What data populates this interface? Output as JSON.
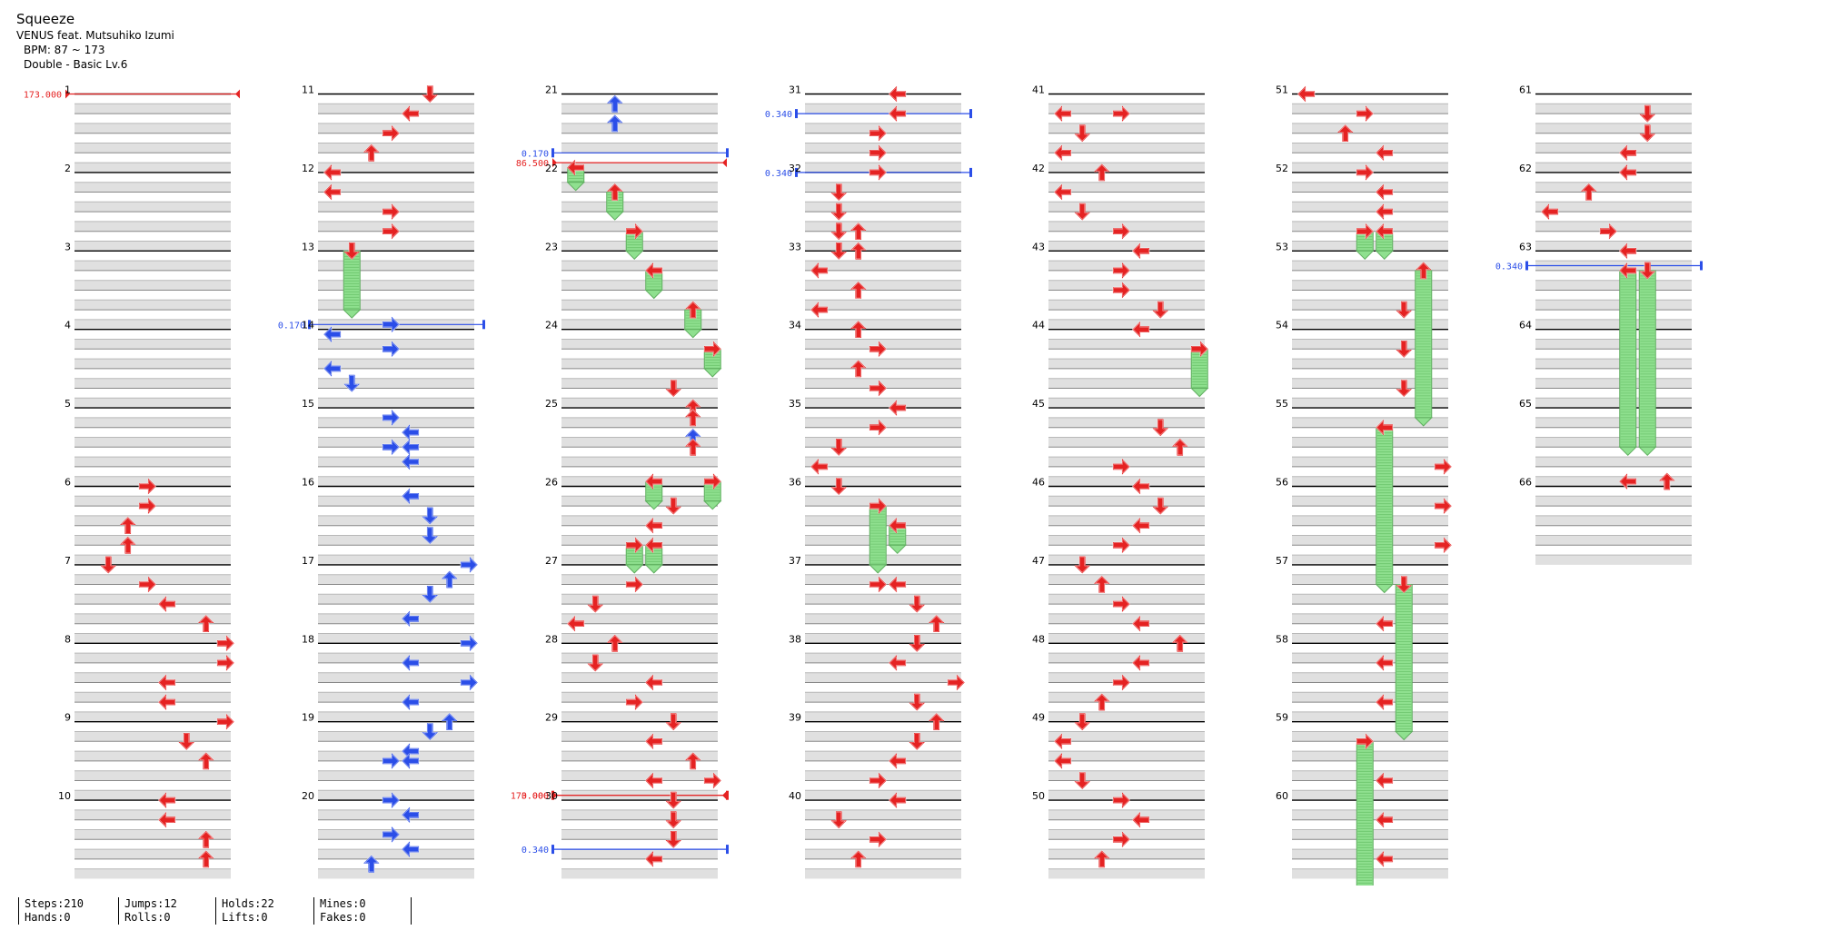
{
  "song": {
    "title": "Squeeze",
    "artist": "VENUS feat. Mutsuhiko Izumi",
    "bpm_label": "BPM: 87 ~ 173",
    "difficulty": "Double - Basic Lv.6"
  },
  "measure_numbers": [
    "1",
    "2",
    "3",
    "4",
    "5",
    "6",
    "7",
    "8",
    "9",
    "10",
    "11",
    "12",
    "13",
    "14",
    "15",
    "16",
    "17",
    "18",
    "19",
    "20",
    "21",
    "22",
    "23",
    "24",
    "25",
    "26",
    "27",
    "28",
    "29",
    "30",
    "31",
    "32",
    "33",
    "34",
    "35",
    "36",
    "37",
    "38",
    "39",
    "40",
    "41",
    "42",
    "43",
    "44",
    "45",
    "46",
    "47",
    "48",
    "49",
    "50",
    "51",
    "52",
    "53",
    "54",
    "55",
    "56",
    "57",
    "58",
    "59",
    "60",
    "61",
    "62",
    "63",
    "64",
    "65",
    "66"
  ],
  "tempo_markers": [
    {
      "measure": 1,
      "beat": 0,
      "label": "173.000",
      "type": "bpm",
      "color": "#e52222"
    },
    {
      "measure": 22,
      "beat": -0.5,
      "label": "86.500",
      "type": "bpm",
      "color": "#e52222"
    },
    {
      "measure": 30,
      "beat": -0.25,
      "label": "173.000",
      "type": "bpm",
      "color": "#e52222"
    },
    {
      "measure": 14,
      "beat": -0.25,
      "label": "0.170",
      "type": "stop",
      "color": "#2b4ee8"
    },
    {
      "measure": 22,
      "beat": -1,
      "label": "0.170",
      "type": "stop",
      "color": "#2b4ee8"
    },
    {
      "measure": 30,
      "beat": -0.25,
      "label": "0.000",
      "type": "stop",
      "color": "#e52222"
    },
    {
      "measure": 30,
      "beat": 2.5,
      "label": "0.340",
      "type": "stop",
      "color": "#2b4ee8"
    },
    {
      "measure": 31,
      "beat": 1,
      "label": "0.340",
      "type": "stop",
      "color": "#2b4ee8"
    },
    {
      "measure": 32,
      "beat": 0,
      "label": "0.340",
      "type": "stop",
      "color": "#2b4ee8"
    },
    {
      "measure": 63,
      "beat": 0.75,
      "label": "0.340",
      "type": "stop",
      "color": "#2b4ee8"
    }
  ],
  "notes": [
    {
      "m": 6,
      "b": 0,
      "lanes": [
        3
      ]
    },
    {
      "m": 6,
      "b": 1,
      "lanes": [
        3
      ]
    },
    {
      "m": 6,
      "b": 2,
      "lanes": [
        2
      ]
    },
    {
      "m": 6,
      "b": 3,
      "lanes": [
        2
      ]
    },
    {
      "m": 7,
      "b": 0,
      "lanes": [
        1
      ]
    },
    {
      "m": 7,
      "b": 1,
      "lanes": [
        3
      ]
    },
    {
      "m": 7,
      "b": 2,
      "lanes": [
        4
      ]
    },
    {
      "m": 7,
      "b": 3,
      "lanes": [
        6
      ]
    },
    {
      "m": 8,
      "b": 0,
      "lanes": [
        7
      ]
    },
    {
      "m": 8,
      "b": 1,
      "lanes": [
        7
      ]
    },
    {
      "m": 8,
      "b": 2,
      "lanes": [
        4
      ]
    },
    {
      "m": 8,
      "b": 3,
      "lanes": [
        4
      ]
    },
    {
      "m": 9,
      "b": 0,
      "lanes": [
        7
      ]
    },
    {
      "m": 9,
      "b": 1,
      "lanes": [
        5
      ]
    },
    {
      "m": 9,
      "b": 2,
      "lanes": [
        6
      ]
    },
    {
      "m": 10,
      "b": 0,
      "lanes": [
        4
      ]
    },
    {
      "m": 10,
      "b": 1,
      "lanes": [
        4
      ]
    },
    {
      "m": 10,
      "b": 2,
      "lanes": [
        6
      ]
    },
    {
      "m": 10,
      "b": 3,
      "lanes": [
        6
      ]
    },
    {
      "m": 11,
      "b": 0,
      "lanes": [
        5
      ]
    },
    {
      "m": 11,
      "b": 1,
      "lanes": [
        4
      ]
    },
    {
      "m": 11,
      "b": 2,
      "lanes": [
        3
      ]
    },
    {
      "m": 11,
      "b": 3,
      "lanes": [
        2
      ]
    },
    {
      "m": 12,
      "b": 0,
      "lanes": [
        0
      ]
    },
    {
      "m": 12,
      "b": 1,
      "lanes": [
        0
      ]
    },
    {
      "m": 12,
      "b": 2,
      "lanes": [
        3
      ]
    },
    {
      "m": 12,
      "b": 3,
      "lanes": [
        3
      ]
    },
    {
      "m": 13,
      "b": 0,
      "lanes": [
        1
      ],
      "hold": 3
    },
    {
      "m": 14,
      "b": -0.25,
      "lanes": [
        3
      ],
      "blue": true
    },
    {
      "m": 14,
      "b": 0.25,
      "lanes": [
        0
      ],
      "blue": true
    },
    {
      "m": 14,
      "b": 1,
      "lanes": [
        3
      ],
      "blue": true
    },
    {
      "m": 14,
      "b": 2,
      "lanes": [
        0
      ],
      "blue": true
    },
    {
      "m": 14,
      "b": 2.75,
      "lanes": [
        1
      ],
      "blue": true
    },
    {
      "m": 15,
      "b": 0.5,
      "lanes": [
        3
      ],
      "blue": true
    },
    {
      "m": 15,
      "b": 1.25,
      "lanes": [
        4
      ],
      "blue": true
    },
    {
      "m": 15,
      "b": 2,
      "lanes": [
        3,
        4
      ],
      "blue": true
    },
    {
      "m": 15,
      "b": 2.75,
      "lanes": [
        4
      ],
      "blue": true
    },
    {
      "m": 16,
      "b": 0.5,
      "lanes": [
        4
      ],
      "blue": true
    },
    {
      "m": 16,
      "b": 1.5,
      "lanes": [
        5
      ],
      "blue": true
    },
    {
      "m": 16,
      "b": 2.5,
      "lanes": [
        5
      ],
      "blue": true
    },
    {
      "m": 17,
      "b": 0,
      "lanes": [
        7
      ],
      "blue": true
    },
    {
      "m": 17,
      "b": 0.75,
      "lanes": [
        6
      ],
      "blue": true
    },
    {
      "m": 17,
      "b": 1.5,
      "lanes": [
        5
      ],
      "blue": true
    },
    {
      "m": 17,
      "b": 2.75,
      "lanes": [
        4
      ],
      "blue": true
    },
    {
      "m": 18,
      "b": 0,
      "lanes": [
        7
      ],
      "blue": true
    },
    {
      "m": 18,
      "b": 1,
      "lanes": [
        4
      ],
      "blue": true
    },
    {
      "m": 18,
      "b": 2,
      "lanes": [
        7
      ],
      "blue": true
    },
    {
      "m": 18,
      "b": 3,
      "lanes": [
        4
      ],
      "blue": true
    },
    {
      "m": 19,
      "b": 0,
      "lanes": [
        6
      ],
      "blue": true
    },
    {
      "m": 19,
      "b": 0.5,
      "lanes": [
        5
      ],
      "blue": true
    },
    {
      "m": 19,
      "b": 1.5,
      "lanes": [
        4
      ],
      "blue": true
    },
    {
      "m": 19,
      "b": 2,
      "lanes": [
        3,
        4
      ],
      "blue": true
    },
    {
      "m": 20,
      "b": 0,
      "lanes": [
        3
      ],
      "blue": true
    },
    {
      "m": 20,
      "b": 0.75,
      "lanes": [
        4
      ],
      "blue": true
    },
    {
      "m": 20,
      "b": 1.75,
      "lanes": [
        3
      ],
      "blue": true
    },
    {
      "m": 20,
      "b": 2.5,
      "lanes": [
        4
      ],
      "blue": true
    },
    {
      "m": 20,
      "b": 3.25,
      "lanes": [
        2
      ],
      "blue": true
    },
    {
      "m": 21,
      "b": 0.5,
      "lanes": [
        2
      ],
      "blue": true
    },
    {
      "m": 21,
      "b": 1.5,
      "lanes": [
        2
      ],
      "blue": true
    },
    {
      "m": 22,
      "b": -0.25,
      "lanes": [
        0
      ],
      "hold": 0.75
    },
    {
      "m": 22,
      "b": 1,
      "lanes": [
        2
      ],
      "hold": 1
    },
    {
      "m": 22,
      "b": 3,
      "lanes": [
        3
      ],
      "hold": 1
    },
    {
      "m": 23,
      "b": 1,
      "lanes": [
        4
      ],
      "hold": 1
    },
    {
      "m": 23,
      "b": 3,
      "lanes": [
        6
      ],
      "hold": 1
    },
    {
      "m": 24,
      "b": 1,
      "lanes": [
        7
      ],
      "hold": 1
    },
    {
      "m": 24,
      "b": 3,
      "lanes": [
        5
      ]
    },
    {
      "m": 25,
      "b": 0,
      "lanes": [
        6
      ]
    },
    {
      "m": 25,
      "b": 0.5,
      "lanes": [
        6
      ]
    },
    {
      "m": 25,
      "b": 1.5,
      "lanes": [
        6
      ],
      "blue": true
    },
    {
      "m": 25,
      "b": 2,
      "lanes": [
        6
      ]
    },
    {
      "m": 26,
      "b": -0.25,
      "lanes": [
        4,
        7
      ],
      "hold": 1
    },
    {
      "m": 26,
      "b": 1,
      "lanes": [
        5
      ]
    },
    {
      "m": 26,
      "b": 2,
      "lanes": [
        4
      ]
    },
    {
      "m": 26,
      "b": 3,
      "lanes": [
        3,
        4
      ],
      "hold": 1
    },
    {
      "m": 27,
      "b": 1,
      "lanes": [
        3
      ]
    },
    {
      "m": 27,
      "b": 2,
      "lanes": [
        1
      ]
    },
    {
      "m": 27,
      "b": 3,
      "lanes": [
        0
      ]
    },
    {
      "m": 28,
      "b": 0,
      "lanes": [
        2
      ]
    },
    {
      "m": 28,
      "b": 1,
      "lanes": [
        1
      ]
    },
    {
      "m": 28,
      "b": 2,
      "lanes": [
        4
      ]
    },
    {
      "m": 28,
      "b": 3,
      "lanes": [
        3
      ]
    },
    {
      "m": 29,
      "b": 0,
      "lanes": [
        5
      ]
    },
    {
      "m": 29,
      "b": 1,
      "lanes": [
        4
      ]
    },
    {
      "m": 29,
      "b": 2,
      "lanes": [
        6
      ]
    },
    {
      "m": 29,
      "b": 3,
      "lanes": [
        4,
        7
      ]
    },
    {
      "m": 30,
      "b": 0,
      "lanes": [
        5
      ]
    },
    {
      "m": 30,
      "b": 1,
      "lanes": [
        5
      ]
    },
    {
      "m": 30,
      "b": 2,
      "lanes": [
        5
      ]
    },
    {
      "m": 30,
      "b": 3,
      "lanes": [
        4
      ]
    },
    {
      "m": 31,
      "b": 0,
      "lanes": [
        4
      ]
    },
    {
      "m": 31,
      "b": 1,
      "lanes": [
        4
      ]
    },
    {
      "m": 31,
      "b": 2,
      "lanes": [
        3
      ]
    },
    {
      "m": 31,
      "b": 3,
      "lanes": [
        3
      ]
    },
    {
      "m": 32,
      "b": 0,
      "lanes": [
        3
      ]
    },
    {
      "m": 32,
      "b": 1,
      "lanes": [
        1
      ]
    },
    {
      "m": 32,
      "b": 2,
      "lanes": [
        1
      ]
    },
    {
      "m": 32,
      "b": 3,
      "lanes": [
        1,
        2
      ]
    },
    {
      "m": 33,
      "b": 0,
      "lanes": [
        1,
        2
      ]
    },
    {
      "m": 33,
      "b": 1,
      "lanes": [
        0
      ]
    },
    {
      "m": 33,
      "b": 2,
      "lanes": [
        2
      ]
    },
    {
      "m": 33,
      "b": 3,
      "lanes": [
        0
      ]
    },
    {
      "m": 34,
      "b": 0,
      "lanes": [
        2
      ]
    },
    {
      "m": 34,
      "b": 1,
      "lanes": [
        3
      ]
    },
    {
      "m": 34,
      "b": 2,
      "lanes": [
        2
      ]
    },
    {
      "m": 34,
      "b": 3,
      "lanes": [
        3
      ]
    },
    {
      "m": 35,
      "b": 0,
      "lanes": [
        4
      ]
    },
    {
      "m": 35,
      "b": 1,
      "lanes": [
        3
      ]
    },
    {
      "m": 35,
      "b": 2,
      "lanes": [
        1
      ]
    },
    {
      "m": 35,
      "b": 3,
      "lanes": [
        0
      ]
    },
    {
      "m": 36,
      "b": 0,
      "lanes": [
        1
      ]
    },
    {
      "m": 36,
      "b": 1,
      "lanes": [
        3
      ],
      "hold": 3
    },
    {
      "m": 36,
      "b": 2,
      "lanes": [
        4
      ],
      "hold": 1
    },
    {
      "m": 37,
      "b": 1,
      "lanes": [
        3,
        4
      ]
    },
    {
      "m": 37,
      "b": 2,
      "lanes": [
        5
      ]
    },
    {
      "m": 37,
      "b": 3,
      "lanes": [
        6
      ]
    },
    {
      "m": 38,
      "b": 0,
      "lanes": [
        5
      ]
    },
    {
      "m": 38,
      "b": 1,
      "lanes": [
        4
      ]
    },
    {
      "m": 38,
      "b": 2,
      "lanes": [
        7
      ]
    },
    {
      "m": 38,
      "b": 3,
      "lanes": [
        5
      ]
    },
    {
      "m": 39,
      "b": 0,
      "lanes": [
        6
      ]
    },
    {
      "m": 39,
      "b": 1,
      "lanes": [
        5
      ]
    },
    {
      "m": 39,
      "b": 2,
      "lanes": [
        4
      ]
    },
    {
      "m": 39,
      "b": 3,
      "lanes": [
        3
      ]
    },
    {
      "m": 40,
      "b": 0,
      "lanes": [
        4
      ]
    },
    {
      "m": 40,
      "b": 1,
      "lanes": [
        1
      ]
    },
    {
      "m": 40,
      "b": 2,
      "lanes": [
        3
      ]
    },
    {
      "m": 40,
      "b": 3,
      "lanes": [
        2
      ]
    },
    {
      "m": 41,
      "b": 1,
      "lanes": [
        0,
        3
      ]
    },
    {
      "m": 41,
      "b": 2,
      "lanes": [
        1
      ]
    },
    {
      "m": 41,
      "b": 3,
      "lanes": [
        0
      ]
    },
    {
      "m": 42,
      "b": 0,
      "lanes": [
        2
      ]
    },
    {
      "m": 42,
      "b": 1,
      "lanes": [
        0
      ]
    },
    {
      "m": 42,
      "b": 2,
      "lanes": [
        1
      ]
    },
    {
      "m": 42,
      "b": 3,
      "lanes": [
        3
      ]
    },
    {
      "m": 43,
      "b": 0,
      "lanes": [
        4
      ]
    },
    {
      "m": 43,
      "b": 1,
      "lanes": [
        3
      ]
    },
    {
      "m": 43,
      "b": 2,
      "lanes": [
        3
      ]
    },
    {
      "m": 43,
      "b": 3,
      "lanes": [
        5
      ]
    },
    {
      "m": 44,
      "b": 0,
      "lanes": [
        4
      ]
    },
    {
      "m": 44,
      "b": 1,
      "lanes": [
        7
      ],
      "hold": 2
    },
    {
      "m": 45,
      "b": 1,
      "lanes": [
        5
      ]
    },
    {
      "m": 45,
      "b": 2,
      "lanes": [
        6
      ]
    },
    {
      "m": 45,
      "b": 3,
      "lanes": [
        3
      ]
    },
    {
      "m": 46,
      "b": 0,
      "lanes": [
        4
      ]
    },
    {
      "m": 46,
      "b": 1,
      "lanes": [
        5
      ]
    },
    {
      "m": 46,
      "b": 2,
      "lanes": [
        4
      ]
    },
    {
      "m": 46,
      "b": 3,
      "lanes": [
        3
      ]
    },
    {
      "m": 47,
      "b": 0,
      "lanes": [
        1
      ]
    },
    {
      "m": 47,
      "b": 1,
      "lanes": [
        2
      ]
    },
    {
      "m": 47,
      "b": 2,
      "lanes": [
        3
      ]
    },
    {
      "m": 47,
      "b": 3,
      "lanes": [
        4
      ]
    },
    {
      "m": 48,
      "b": 0,
      "lanes": [
        6
      ]
    },
    {
      "m": 48,
      "b": 1,
      "lanes": [
        4
      ]
    },
    {
      "m": 48,
      "b": 2,
      "lanes": [
        3
      ]
    },
    {
      "m": 48,
      "b": 3,
      "lanes": [
        2
      ]
    },
    {
      "m": 49,
      "b": 0,
      "lanes": [
        1
      ]
    },
    {
      "m": 49,
      "b": 1,
      "lanes": [
        0
      ]
    },
    {
      "m": 49,
      "b": 2,
      "lanes": [
        0
      ]
    },
    {
      "m": 49,
      "b": 3,
      "lanes": [
        1
      ]
    },
    {
      "m": 50,
      "b": 0,
      "lanes": [
        3
      ]
    },
    {
      "m": 50,
      "b": 1,
      "lanes": [
        4
      ]
    },
    {
      "m": 50,
      "b": 2,
      "lanes": [
        3
      ]
    },
    {
      "m": 50,
      "b": 3,
      "lanes": [
        2
      ]
    },
    {
      "m": 51,
      "b": 0,
      "lanes": [
        0
      ]
    },
    {
      "m": 51,
      "b": 1,
      "lanes": [
        3
      ]
    },
    {
      "m": 51,
      "b": 2,
      "lanes": [
        2
      ]
    },
    {
      "m": 51,
      "b": 3,
      "lanes": [
        4
      ]
    },
    {
      "m": 52,
      "b": 0,
      "lanes": [
        3
      ]
    },
    {
      "m": 52,
      "b": 1,
      "lanes": [
        4
      ]
    },
    {
      "m": 52,
      "b": 2,
      "lanes": [
        4
      ]
    },
    {
      "m": 52,
      "b": 3,
      "lanes": [
        3,
        4
      ],
      "hold": 1
    },
    {
      "m": 53,
      "b": 1,
      "lanes": [
        6
      ],
      "hold": 7.5
    },
    {
      "m": 53,
      "b": 3,
      "lanes": [
        5
      ]
    },
    {
      "m": 54,
      "b": 1,
      "lanes": [
        5
      ]
    },
    {
      "m": 54,
      "b": 3,
      "lanes": [
        5
      ]
    },
    {
      "m": 55,
      "b": 1,
      "lanes": [
        4
      ],
      "hold": 8
    },
    {
      "m": 55,
      "b": 3,
      "lanes": [
        7
      ]
    },
    {
      "m": 56,
      "b": 1,
      "lanes": [
        7
      ]
    },
    {
      "m": 56,
      "b": 3,
      "lanes": [
        7
      ]
    },
    {
      "m": 57,
      "b": 1,
      "lanes": [
        5
      ],
      "hold": 7.5
    },
    {
      "m": 57,
      "b": 3,
      "lanes": [
        4
      ]
    },
    {
      "m": 58,
      "b": 1,
      "lanes": [
        4
      ]
    },
    {
      "m": 58,
      "b": 3,
      "lanes": [
        4
      ]
    },
    {
      "m": 59,
      "b": 1,
      "lanes": [
        3
      ],
      "hold": 7.5
    },
    {
      "m": 59,
      "b": 3,
      "lanes": [
        4
      ]
    },
    {
      "m": 60,
      "b": 1,
      "lanes": [
        4
      ]
    },
    {
      "m": 60,
      "b": 3,
      "lanes": [
        4
      ]
    },
    {
      "m": 61,
      "b": 1,
      "lanes": [
        5
      ]
    },
    {
      "m": 61,
      "b": 2,
      "lanes": [
        5
      ]
    },
    {
      "m": 61,
      "b": 3,
      "lanes": [
        4
      ]
    },
    {
      "m": 62,
      "b": 0,
      "lanes": [
        4
      ]
    },
    {
      "m": 62,
      "b": 1,
      "lanes": [
        2
      ]
    },
    {
      "m": 62,
      "b": 2,
      "lanes": [
        0
      ]
    },
    {
      "m": 62,
      "b": 3,
      "lanes": [
        3
      ]
    },
    {
      "m": 63,
      "b": 0,
      "lanes": [
        4
      ]
    },
    {
      "m": 63,
      "b": 1,
      "lanes": [
        4,
        5
      ],
      "hold": 9
    },
    {
      "m": 66,
      "b": -0.25,
      "lanes": [
        4
      ]
    },
    {
      "m": 66,
      "b": -0.25,
      "lanes": [
        6
      ]
    }
  ],
  "stats": {
    "steps": "Steps:210",
    "hands": "Hands:0",
    "jumps": "Jumps:12",
    "rolls": "Rolls:0",
    "holds": "Holds:22",
    "lifts": "Lifts:0",
    "mines": "Mines:0",
    "fakes": "Fakes:0"
  },
  "colors": {
    "note_red": "#e52222",
    "note_blue": "#2b4ee8",
    "hold_green": "#8fe08f",
    "band_gray": "#e0e0e0"
  }
}
